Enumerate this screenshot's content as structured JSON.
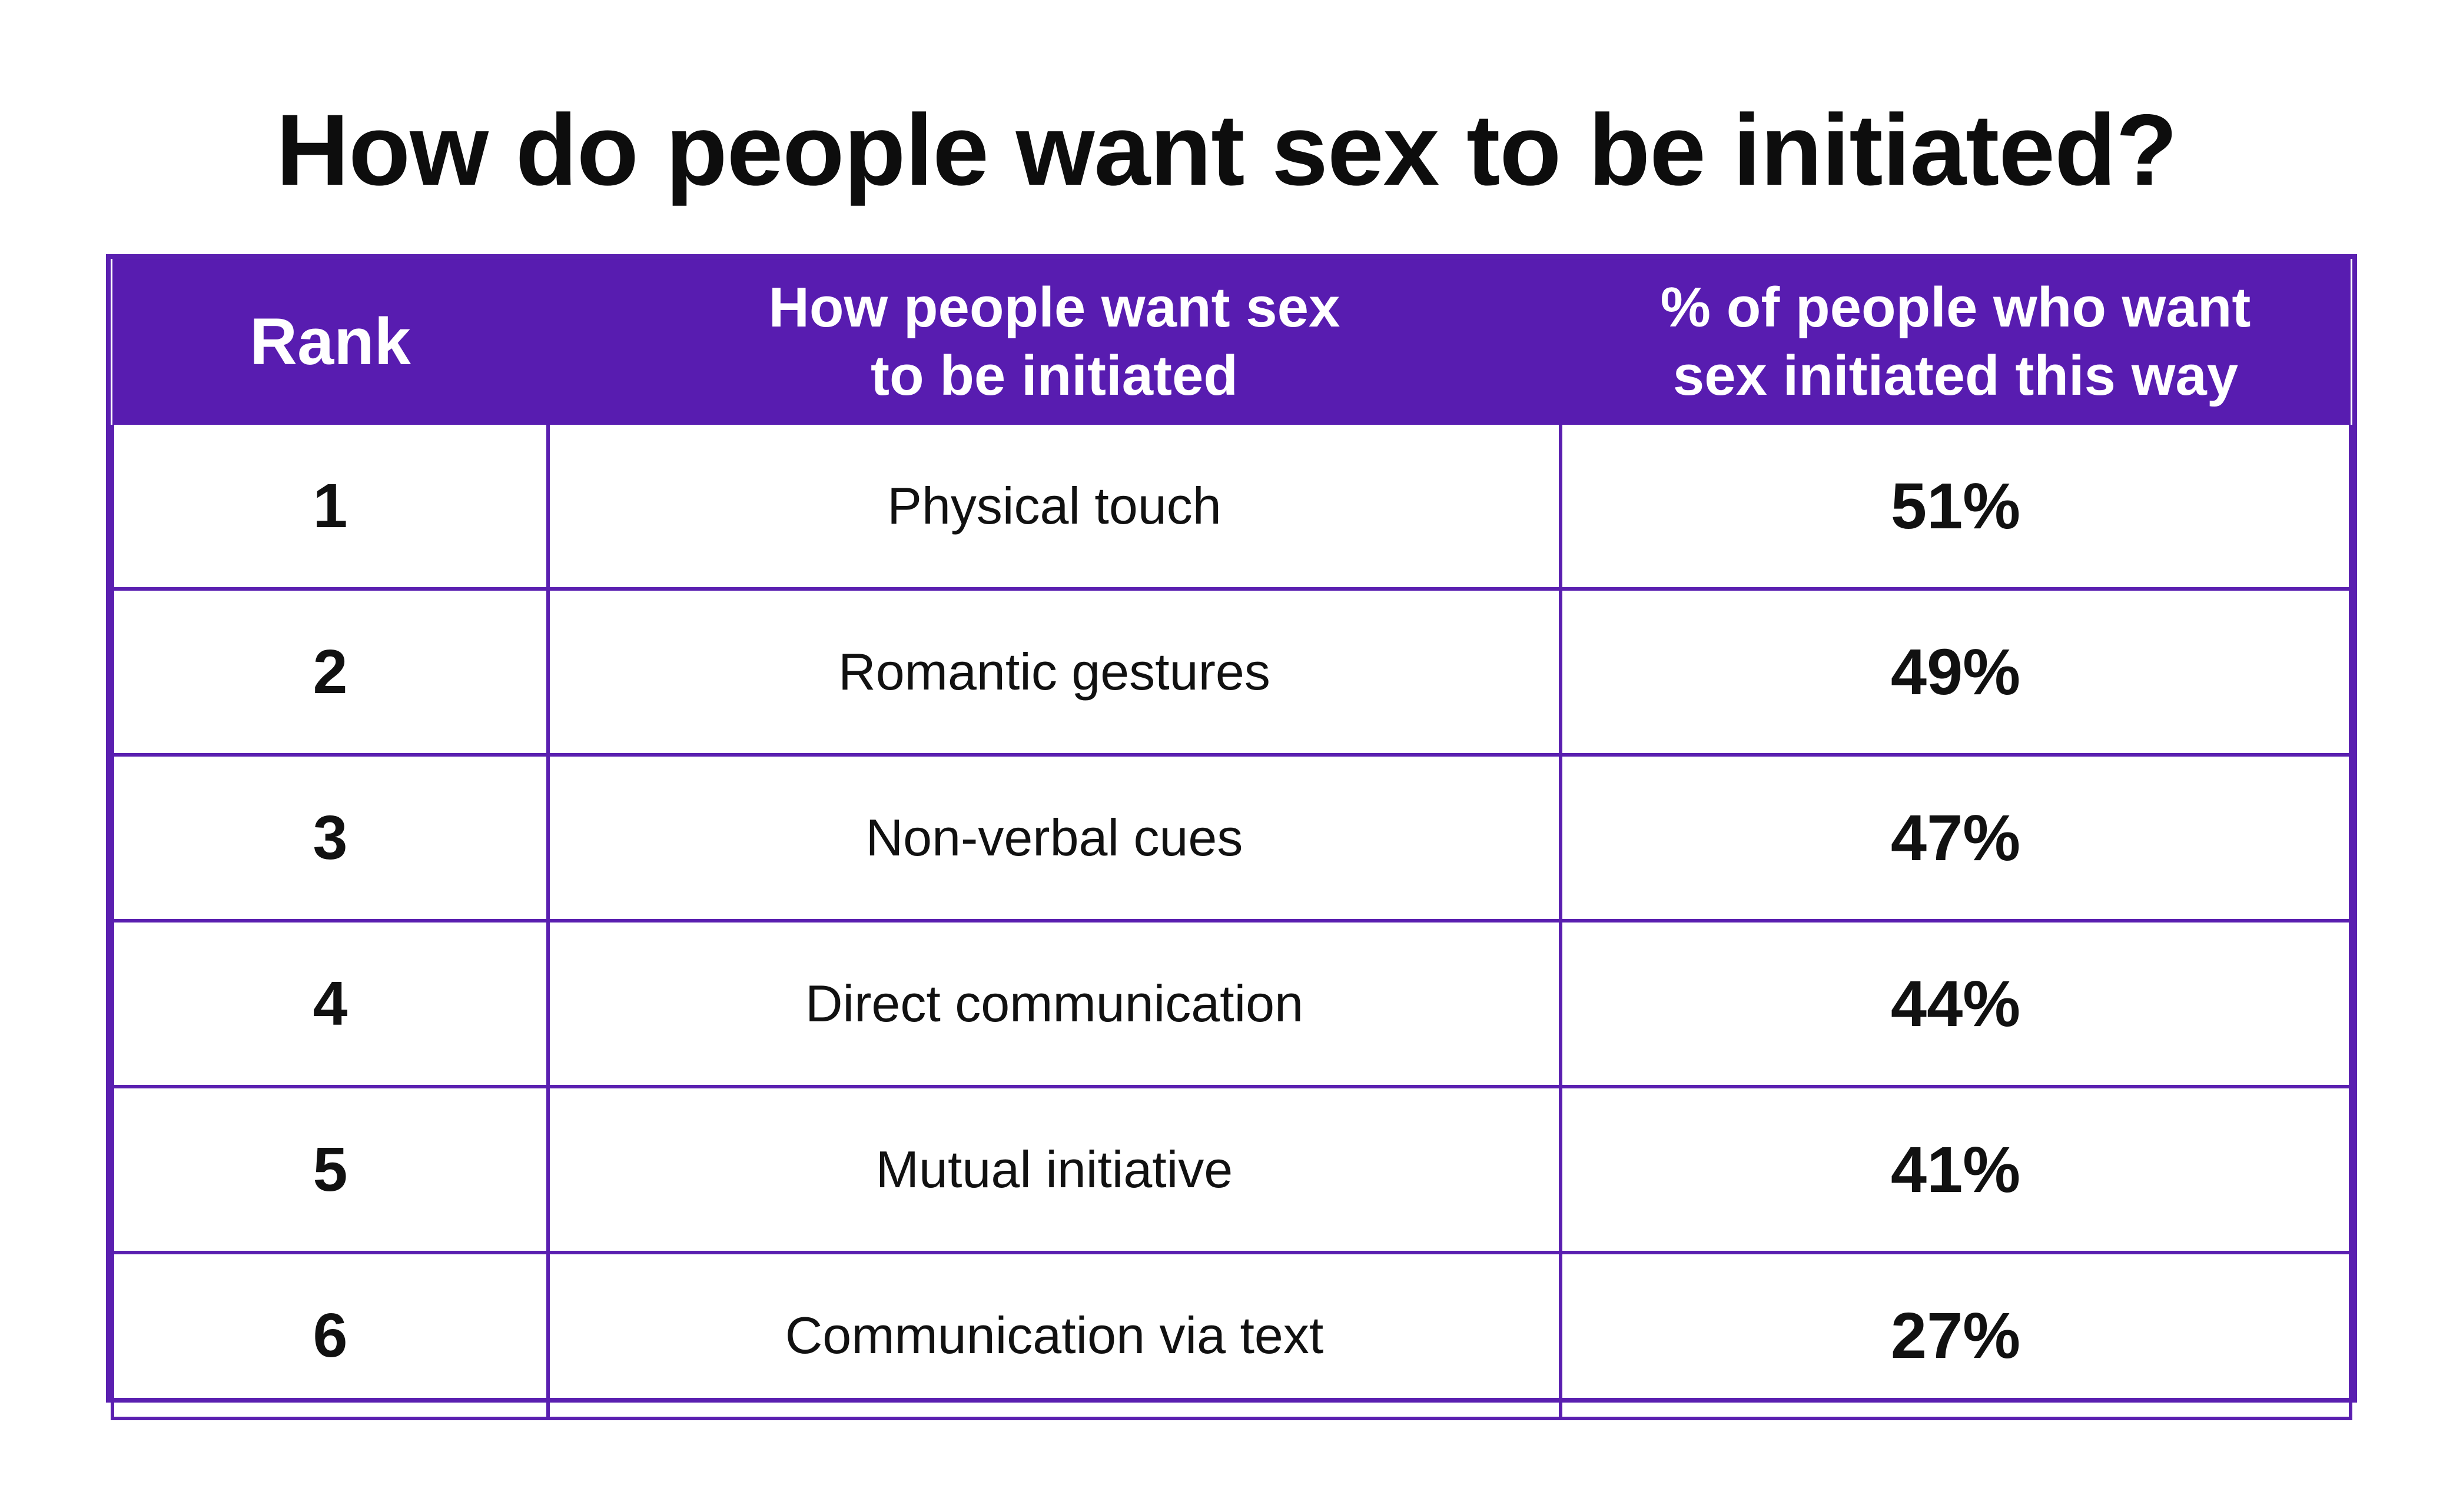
{
  "chart_data": {
    "type": "table",
    "title": "How do people want sex to be initiated?",
    "columns": [
      "Rank",
      "How people want sex to be initiated",
      "% of people who want sex initiated this way"
    ],
    "header_lines": {
      "rank": [
        "Rank"
      ],
      "method": [
        "How people want sex",
        "to be initiated"
      ],
      "pct": [
        "% of people who want",
        "sex initiated this way"
      ]
    },
    "rows": [
      {
        "rank": "1",
        "method": "Physical touch",
        "pct": "51%"
      },
      {
        "rank": "2",
        "method": "Romantic gestures",
        "pct": "49%"
      },
      {
        "rank": "3",
        "method": "Non-verbal cues",
        "pct": "47%"
      },
      {
        "rank": "4",
        "method": "Direct communication",
        "pct": "44%"
      },
      {
        "rank": "5",
        "method": "Mutual initiative",
        "pct": "41%"
      },
      {
        "rank": "6",
        "method": "Communication via text",
        "pct": "27%"
      }
    ],
    "values": [
      51,
      49,
      47,
      44,
      41,
      27
    ]
  },
  "colors": {
    "header_background": "#581cb0",
    "border": "#5a1fb0",
    "header_text": "#ffffff",
    "body_text": "#111111"
  }
}
